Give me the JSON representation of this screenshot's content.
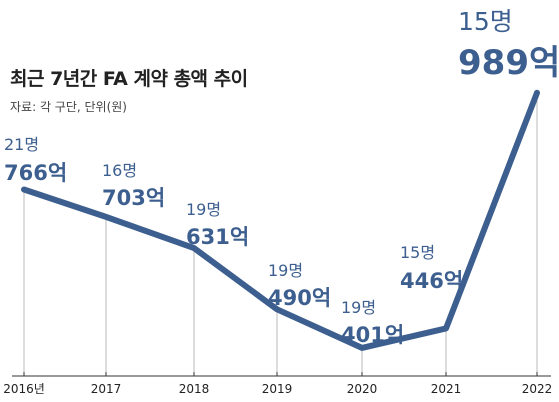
{
  "title": "최근 7년간 FA 계약 총액 추이",
  "source": "자료: 각 구단, 단위(원)",
  "colors": {
    "line": "#3d5f8f",
    "label": "#3d5f8f",
    "axis": "#333333",
    "gridline": "#b8b8b8"
  },
  "chart_data": {
    "type": "line",
    "title": "최근 7년간 FA 계약 총액 추이",
    "xlabel": "",
    "ylabel": "",
    "x": [
      "2016년",
      "2017",
      "2018",
      "2019",
      "2020",
      "2021",
      "2022"
    ],
    "categories": [
      "2016년",
      "2017",
      "2018",
      "2019",
      "2020",
      "2021",
      "2022"
    ],
    "series": [
      {
        "name": "",
        "values": [
          766,
          703,
          631,
          490,
          401,
          446,
          989
        ]
      }
    ],
    "players": [
      "21명",
      "16명",
      "19명",
      "19명",
      "19명",
      "15명",
      "15명"
    ],
    "value_labels": [
      "766억",
      "703억",
      "631억",
      "490억",
      "401억",
      "446억",
      "989억"
    ],
    "ylim": [
      350,
      1000
    ],
    "grid": false,
    "legend": "none"
  }
}
